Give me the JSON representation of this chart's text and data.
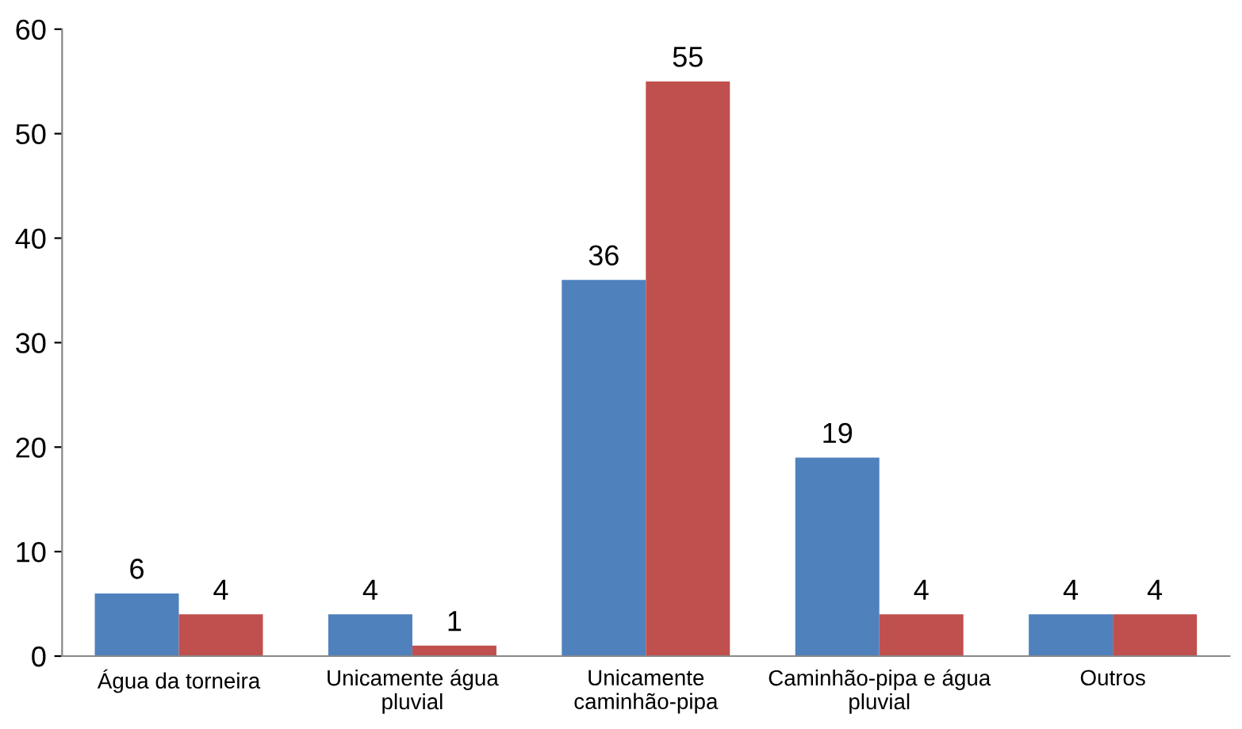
{
  "chart_data": {
    "type": "bar",
    "categories": [
      "Água da torneira",
      "Unicamente água\npluvial",
      "Unicamente\ncaminhão-pipa",
      "Caminhão-pipa e água\npluvial",
      "Outros"
    ],
    "series": [
      {
        "color": "#4f81bd",
        "values": [
          6,
          4,
          36,
          19,
          4
        ]
      },
      {
        "color": "#c0504d",
        "values": [
          4,
          1,
          55,
          4,
          4
        ]
      }
    ],
    "ylim": [
      0,
      60
    ],
    "yticks": [
      0,
      10,
      20,
      30,
      40,
      50,
      60
    ],
    "data_labels": true,
    "grid": false,
    "legend": false
  }
}
